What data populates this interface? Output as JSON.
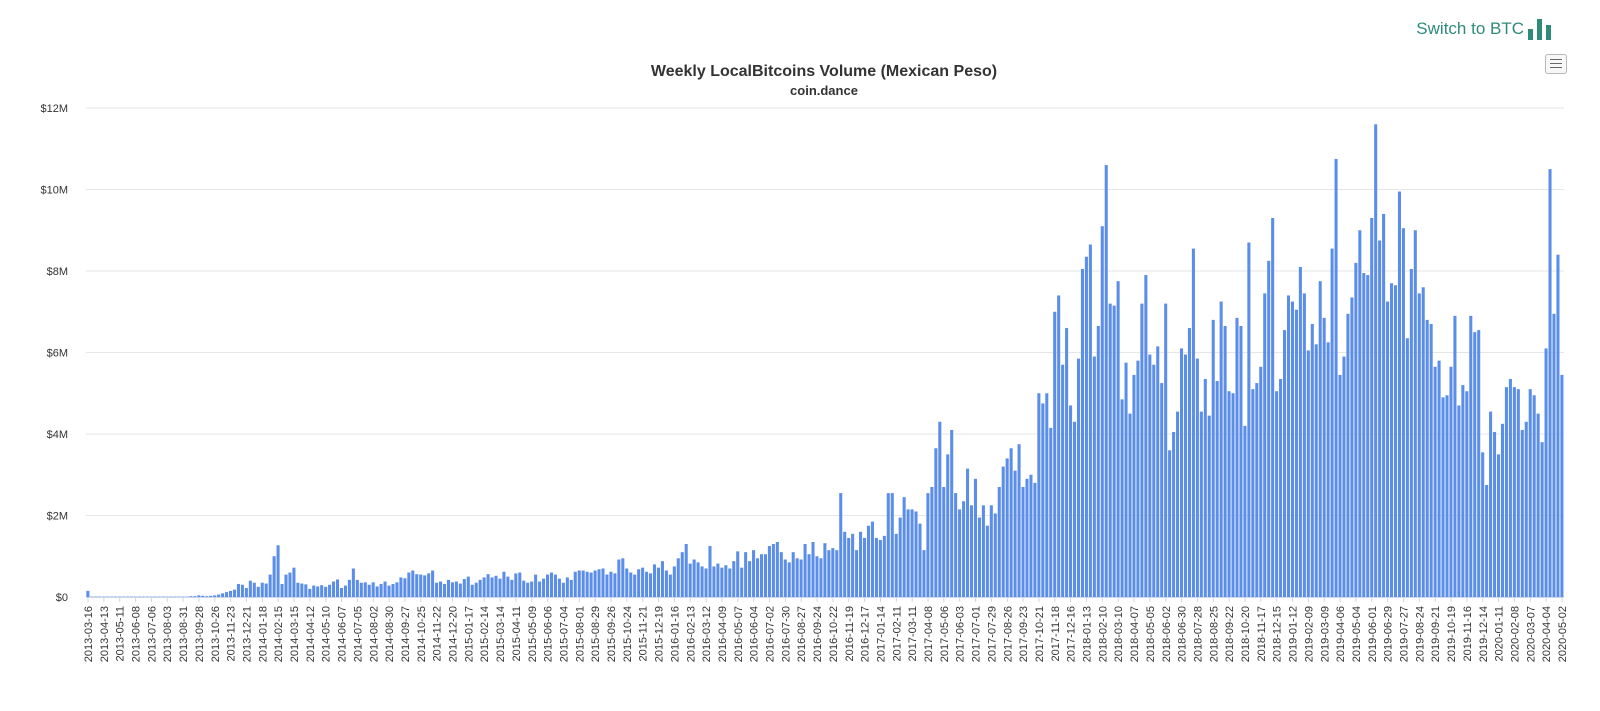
{
  "header": {
    "switch_label": "Switch to BTC",
    "switch_icon": "bar-chart-icon",
    "menu_icon": "hamburger-menu-icon"
  },
  "colors": {
    "bar": "#5b8ee8",
    "accent": "#2e8b7a",
    "grid": "#e6e6e6"
  },
  "chart_data": {
    "type": "bar",
    "title": "Weekly LocalBitcoins Volume (Mexican Peso)",
    "subtitle": "coin.dance",
    "xlabel": "",
    "ylabel": "",
    "ylim": [
      0,
      12000000
    ],
    "yticks": [
      "$0",
      "$2M",
      "$4M",
      "$6M",
      "$8M",
      "$10M",
      "$12M"
    ],
    "grid": true,
    "legend": "none",
    "first_week": "2013-03-16",
    "week_step_days": 7,
    "x_tick_labels": [
      "2013-03-16",
      "2013-04-13",
      "2013-05-11",
      "2013-06-08",
      "2013-07-06",
      "2013-08-03",
      "2013-08-31",
      "2013-09-28",
      "2013-10-26",
      "2013-11-23",
      "2013-12-21",
      "2014-01-18",
      "2014-02-15",
      "2014-03-15",
      "2014-04-12",
      "2014-05-10",
      "2014-06-07",
      "2014-07-05",
      "2014-08-02",
      "2014-08-30",
      "2014-09-27",
      "2014-10-25",
      "2014-11-22",
      "2014-12-20",
      "2015-01-17",
      "2015-02-14",
      "2015-03-14",
      "2015-04-11",
      "2015-05-09",
      "2015-06-06",
      "2015-07-04",
      "2015-08-01",
      "2015-08-29",
      "2015-09-26",
      "2015-10-24",
      "2015-11-21",
      "2015-12-19",
      "2016-01-16",
      "2016-02-13",
      "2016-03-12",
      "2016-04-09",
      "2016-05-07",
      "2016-06-04",
      "2016-07-02",
      "2016-07-30",
      "2016-08-27",
      "2016-09-24",
      "2016-10-22",
      "2016-11-19",
      "2016-12-17",
      "2017-01-14",
      "2017-02-11",
      "2017-03-11",
      "2017-04-08",
      "2017-05-06",
      "2017-06-03",
      "2017-07-01",
      "2017-07-29",
      "2017-08-26",
      "2017-09-23",
      "2017-10-21",
      "2017-11-18",
      "2017-12-16",
      "2018-01-13",
      "2018-02-10",
      "2018-03-10",
      "2018-04-07",
      "2018-05-05",
      "2018-06-02",
      "2018-06-30",
      "2018-07-28",
      "2018-08-25",
      "2018-09-22",
      "2018-10-20",
      "2018-11-17",
      "2018-12-15",
      "2019-01-12",
      "2019-02-09",
      "2019-03-09",
      "2019-04-06",
      "2019-05-04",
      "2019-06-01",
      "2019-06-29",
      "2019-07-27",
      "2019-08-24",
      "2019-09-21",
      "2019-10-19",
      "2019-11-16",
      "2019-12-14",
      "2020-01-11",
      "2020-02-08",
      "2020-03-07",
      "2020-04-04",
      "2020-05-02"
    ],
    "values_millions": [
      0.15,
      0.01,
      0.01,
      0.01,
      0.01,
      0.01,
      0.01,
      0.01,
      0.01,
      0.01,
      0.01,
      0.01,
      0.01,
      0.01,
      0.01,
      0.01,
      0.01,
      0.01,
      0.01,
      0.01,
      0.01,
      0.01,
      0.01,
      0.01,
      0.01,
      0.01,
      0.02,
      0.02,
      0.04,
      0.03,
      0.02,
      0.03,
      0.04,
      0.06,
      0.09,
      0.12,
      0.15,
      0.18,
      0.32,
      0.3,
      0.22,
      0.4,
      0.35,
      0.25,
      0.35,
      0.33,
      0.55,
      1.0,
      1.27,
      0.32,
      0.55,
      0.6,
      0.72,
      0.35,
      0.33,
      0.31,
      0.2,
      0.28,
      0.26,
      0.29,
      0.25,
      0.3,
      0.38,
      0.43,
      0.22,
      0.28,
      0.42,
      0.7,
      0.42,
      0.35,
      0.36,
      0.3,
      0.36,
      0.26,
      0.32,
      0.38,
      0.28,
      0.32,
      0.36,
      0.48,
      0.46,
      0.6,
      0.65,
      0.56,
      0.55,
      0.53,
      0.58,
      0.65,
      0.35,
      0.38,
      0.32,
      0.42,
      0.36,
      0.38,
      0.33,
      0.44,
      0.5,
      0.3,
      0.35,
      0.42,
      0.48,
      0.56,
      0.48,
      0.52,
      0.45,
      0.62,
      0.5,
      0.42,
      0.58,
      0.6,
      0.4,
      0.35,
      0.38,
      0.55,
      0.38,
      0.45,
      0.55,
      0.6,
      0.55,
      0.45,
      0.35,
      0.48,
      0.42,
      0.62,
      0.65,
      0.65,
      0.62,
      0.6,
      0.65,
      0.68,
      0.7,
      0.55,
      0.62,
      0.58,
      0.92,
      0.95,
      0.7,
      0.6,
      0.55,
      0.68,
      0.72,
      0.62,
      0.58,
      0.8,
      0.72,
      0.88,
      0.65,
      0.55,
      0.75,
      0.95,
      1.1,
      1.3,
      0.82,
      0.92,
      0.85,
      0.75,
      0.7,
      1.25,
      0.75,
      0.82,
      0.72,
      0.78,
      0.7,
      0.88,
      1.12,
      0.72,
      1.1,
      0.88,
      1.15,
      0.95,
      1.05,
      1.05,
      1.25,
      1.3,
      1.35,
      1.1,
      0.92,
      0.85,
      1.1,
      0.95,
      0.92,
      1.3,
      1.05,
      1.35,
      1.0,
      0.95,
      1.32,
      1.15,
      1.2,
      1.15,
      2.55,
      1.6,
      1.45,
      1.55,
      1.15,
      1.6,
      1.45,
      1.75,
      1.85,
      1.45,
      1.4,
      1.5,
      2.55,
      2.55,
      1.55,
      1.95,
      2.45,
      2.15,
      2.15,
      2.1,
      1.8,
      1.15,
      2.55,
      2.7,
      3.65,
      4.3,
      2.7,
      3.5,
      4.1,
      2.55,
      2.15,
      2.35,
      3.15,
      2.25,
      2.9,
      1.95,
      2.25,
      1.75,
      2.25,
      2.05,
      2.7,
      3.2,
      3.4,
      3.65,
      3.1,
      3.75,
      2.7,
      2.9,
      3.0,
      2.8,
      5.0,
      4.75,
      5.0,
      4.15,
      7.0,
      7.4,
      5.7,
      6.6,
      4.7,
      4.3,
      5.85,
      8.05,
      8.35,
      8.65,
      5.9,
      6.65,
      9.1,
      10.6,
      7.2,
      7.15,
      7.75,
      4.85,
      5.75,
      4.5,
      5.45,
      5.8,
      7.2,
      7.9,
      5.95,
      5.7,
      6.15,
      5.25,
      7.2,
      3.6,
      4.05,
      4.55,
      6.1,
      5.95,
      6.6,
      8.55,
      5.85,
      4.55,
      5.35,
      4.45,
      6.8,
      5.3,
      7.25,
      6.65,
      5.05,
      5.0,
      6.85,
      6.65,
      4.2,
      8.7,
      5.1,
      5.25,
      5.65,
      7.45,
      8.25,
      9.3,
      5.05,
      5.35,
      6.55,
      7.4,
      7.25,
      7.05,
      8.1,
      7.45,
      6.05,
      6.7,
      6.2,
      7.75,
      6.85,
      6.25,
      8.55,
      10.75,
      5.45,
      5.9,
      6.95,
      7.35,
      8.2,
      9.0,
      7.95,
      7.9,
      9.3,
      11.6,
      8.75,
      9.4,
      7.25,
      7.7,
      7.65,
      9.95,
      9.05,
      6.35,
      8.05,
      9.0,
      7.45,
      7.6,
      6.8,
      6.7,
      5.65,
      5.8,
      4.9,
      4.95,
      5.65,
      6.9,
      4.7,
      5.2,
      5.05,
      6.9,
      6.5,
      6.55,
      3.55,
      2.75,
      4.55,
      4.05,
      3.5,
      4.25,
      5.15,
      5.35,
      5.15,
      5.1,
      4.1,
      4.3,
      5.1,
      4.95,
      4.5,
      3.8,
      6.1,
      10.5,
      6.95,
      8.4,
      5.45
    ]
  }
}
